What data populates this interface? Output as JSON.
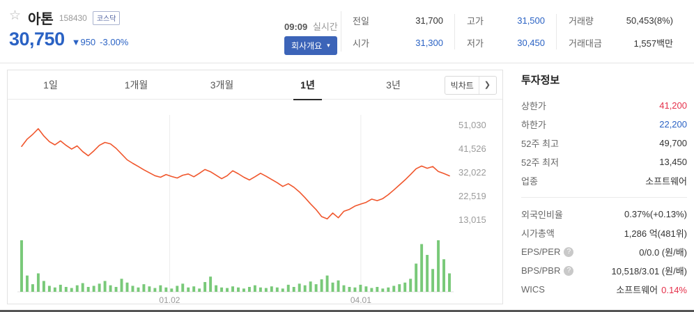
{
  "colors": {
    "down_blue": "#2a62c4",
    "up_red": "#e5304a",
    "button_blue": "#3c64b8",
    "line_orange": "#f0562c",
    "volume_green": "#79c979"
  },
  "icons": {
    "favorite": "☆",
    "down_arrow": "▼",
    "dropdown_caret": "▾",
    "chevron_right": "❯",
    "help": "?"
  },
  "header": {
    "stock_name": "아톤",
    "stock_code": "158430",
    "market_badge": "코스닥",
    "price": "30,750",
    "change_arrow": "▼",
    "change_value": "950",
    "change_percent": "-3.00%",
    "time": "09:09",
    "realtime_label": "실시간",
    "company_overview_button": "회사개요",
    "quote_columns": [
      {
        "cells": [
          {
            "label": "전일",
            "value": "31,700",
            "tone": "dark"
          },
          {
            "label": "시가",
            "value": "31,300",
            "tone": "blue"
          }
        ]
      },
      {
        "cells": [
          {
            "label": "고가",
            "value": "31,500",
            "tone": "blue"
          },
          {
            "label": "저가",
            "value": "30,450",
            "tone": "blue"
          }
        ]
      },
      {
        "cells": [
          {
            "label": "거래량",
            "value": "50,453(8%)",
            "tone": "dark"
          },
          {
            "label": "거래대금",
            "value": "1,557백만",
            "tone": "dark"
          }
        ]
      }
    ]
  },
  "chart": {
    "tabs": [
      {
        "label": "1일",
        "active": false
      },
      {
        "label": "1개월",
        "active": false
      },
      {
        "label": "3개월",
        "active": false
      },
      {
        "label": "1년",
        "active": true
      },
      {
        "label": "3년",
        "active": false
      }
    ],
    "big_chart_button": "빅차트"
  },
  "chart_data": {
    "type": "line",
    "period": "1년",
    "y_ticks": [
      "51,030",
      "41,526",
      "32,022",
      "22,519",
      "13,015"
    ],
    "y_tick_values": [
      51030,
      41526,
      32022,
      22519,
      13015
    ],
    "x_ticks": [
      "01.02",
      "04.01"
    ],
    "x_tick_positions": [
      0.346,
      0.793
    ],
    "ylim": [
      9350,
      53000
    ],
    "grid": "vertical-only",
    "legend": "none",
    "price_values": [
      42600,
      45500,
      47400,
      49700,
      46800,
      44500,
      43200,
      44800,
      43000,
      41500,
      42800,
      40500,
      38800,
      40800,
      43000,
      44200,
      43600,
      41800,
      39500,
      37200,
      35800,
      34500,
      33200,
      32000,
      30800,
      30200,
      31300,
      30500,
      29900,
      31000,
      31500,
      30400,
      31800,
      33300,
      32400,
      31000,
      29600,
      30800,
      32800,
      31600,
      30200,
      29100,
      30400,
      31800,
      30600,
      29300,
      28000,
      26500,
      27600,
      26200,
      24300,
      22000,
      19500,
      17200,
      14400,
      13450,
      15800,
      13900,
      16500,
      17300,
      18600,
      19400,
      20100,
      21400,
      20800,
      21600,
      23200,
      25100,
      27100,
      29100,
      31300,
      33600,
      34700,
      33800,
      34500,
      32500,
      31700,
      30750
    ],
    "volume_values": [
      95,
      30,
      14,
      34,
      20,
      11,
      8,
      13,
      9,
      7,
      12,
      16,
      9,
      11,
      15,
      20,
      12,
      9,
      24,
      17,
      11,
      8,
      14,
      10,
      7,
      12,
      8,
      6,
      11,
      15,
      8,
      10,
      6,
      18,
      28,
      12,
      8,
      7,
      10,
      8,
      6,
      9,
      12,
      8,
      7,
      10,
      8,
      6,
      13,
      9,
      15,
      12,
      19,
      14,
      23,
      30,
      17,
      21,
      12,
      9,
      8,
      13,
      10,
      7,
      9,
      6,
      8,
      11,
      14,
      17,
      24,
      52,
      88,
      68,
      42,
      95,
      60,
      34
    ],
    "colors": {
      "line": "#f0562c",
      "volume": "#79c979"
    }
  },
  "investment_info": {
    "title": "투자정보",
    "rows_top": [
      {
        "label": "상한가",
        "value": "41,200",
        "tone": "red"
      },
      {
        "label": "하한가",
        "value": "22,200",
        "tone": "blue"
      },
      {
        "label": "52주 최고",
        "value": "49,700",
        "tone": "dark"
      },
      {
        "label": "52주 최저",
        "value": "13,450",
        "tone": "dark"
      },
      {
        "label": "업종",
        "value": "소프트웨어",
        "tone": "dark"
      }
    ],
    "rows_bottom": [
      {
        "label": "외국인비율",
        "value": "0.37%(+0.13%)",
        "tone": "dark",
        "help": false
      },
      {
        "label": "시가총액",
        "value": "1,286 억(481위)",
        "tone": "dark",
        "help": false
      },
      {
        "label": "EPS/PER",
        "value": "0/0.0 (원/배)",
        "tone": "dark",
        "help": true
      },
      {
        "label": "BPS/PBR",
        "value": "10,518/3.01 (원/배)",
        "tone": "dark",
        "help": true
      },
      {
        "label": "WICS",
        "value": "소프트웨어",
        "value2": "0.14%",
        "tone": "dark",
        "help": false
      }
    ]
  }
}
